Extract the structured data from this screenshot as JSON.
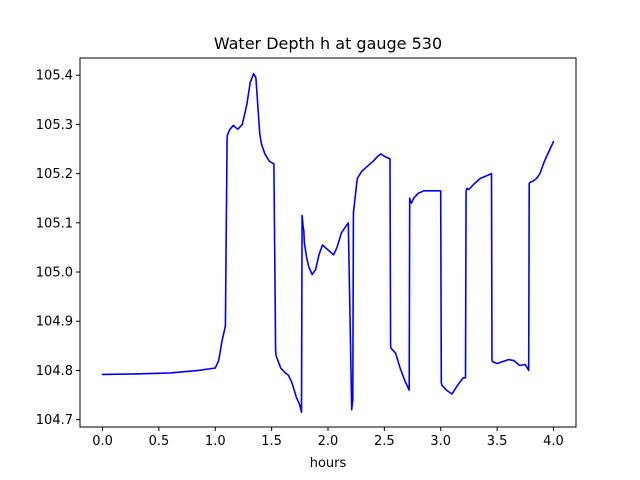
{
  "chart_data": {
    "type": "line",
    "title": "Water Depth h at gauge 530",
    "xlabel": "hours",
    "ylabel": "",
    "xlim": [
      -0.2,
      4.2
    ],
    "ylim": [
      104.685,
      105.435
    ],
    "x_ticks": [
      0.0,
      0.5,
      1.0,
      1.5,
      2.0,
      2.5,
      3.0,
      3.5,
      4.0
    ],
    "x_tick_labels": [
      "0.0",
      "0.5",
      "1.0",
      "1.5",
      "2.0",
      "2.5",
      "3.0",
      "3.5",
      "4.0"
    ],
    "y_ticks": [
      104.7,
      104.8,
      104.9,
      105.0,
      105.1,
      105.2,
      105.3,
      105.4
    ],
    "y_tick_labels": [
      "104.7",
      "104.8",
      "104.9",
      "105.0",
      "105.1",
      "105.2",
      "105.3",
      "105.4"
    ],
    "grid": false,
    "colors": {
      "series": "#0000ff",
      "axes": "#000000",
      "background": "#ffffff"
    },
    "series": [
      {
        "x": [
          0.0,
          0.3,
          0.6,
          0.7,
          0.85,
          1.0,
          1.03,
          1.06,
          1.09,
          1.105,
          1.11,
          1.13,
          1.16,
          1.2,
          1.24,
          1.28,
          1.31,
          1.34,
          1.36,
          1.38,
          1.395,
          1.41,
          1.44,
          1.48,
          1.52,
          1.535,
          1.54,
          1.58,
          1.62,
          1.65,
          1.68,
          1.7,
          1.72,
          1.74,
          1.75,
          1.76,
          1.765,
          1.77,
          1.775,
          1.78,
          1.785,
          1.79,
          1.81,
          1.83,
          1.86,
          1.89,
          1.92,
          1.95,
          2.0,
          2.05,
          2.08,
          2.12,
          2.18,
          2.21,
          2.215,
          2.22,
          2.225,
          2.235,
          2.24,
          2.245,
          2.26,
          2.3,
          2.35,
          2.4,
          2.44,
          2.47,
          2.5,
          2.55,
          2.555,
          2.56,
          2.6,
          2.64,
          2.68,
          2.71,
          2.72,
          2.725,
          2.73,
          2.74,
          2.76,
          2.8,
          2.85,
          2.9,
          2.95,
          3.0,
          3.005,
          3.01,
          3.05,
          3.1,
          3.15,
          3.2,
          3.22,
          3.225,
          3.23,
          3.25,
          3.3,
          3.35,
          3.4,
          3.45,
          3.455,
          3.46,
          3.5,
          3.55,
          3.6,
          3.65,
          3.7,
          3.75,
          3.78,
          3.785,
          3.79,
          3.82,
          3.85,
          3.88,
          3.92,
          3.96,
          4.0
        ],
        "y": [
          104.792,
          104.793,
          104.795,
          104.797,
          104.8,
          104.805,
          104.82,
          104.86,
          104.89,
          105.275,
          105.28,
          105.29,
          105.298,
          105.29,
          105.3,
          105.34,
          105.385,
          105.403,
          105.395,
          105.33,
          105.28,
          105.26,
          105.24,
          105.225,
          105.22,
          104.84,
          104.83,
          104.805,
          104.795,
          104.79,
          104.775,
          104.76,
          104.745,
          104.735,
          104.73,
          104.72,
          104.715,
          105.115,
          105.105,
          105.09,
          105.085,
          105.06,
          105.03,
          105.01,
          104.995,
          105.005,
          105.035,
          105.055,
          105.045,
          105.035,
          105.05,
          105.08,
          105.1,
          104.72,
          104.73,
          104.74,
          105.12,
          105.14,
          105.15,
          105.16,
          105.19,
          105.205,
          105.215,
          105.225,
          105.235,
          105.24,
          105.235,
          105.23,
          104.85,
          104.845,
          104.835,
          104.805,
          104.78,
          104.765,
          104.76,
          105.15,
          105.145,
          105.14,
          105.15,
          105.16,
          105.165,
          105.165,
          105.165,
          105.165,
          104.775,
          104.77,
          104.76,
          104.752,
          104.77,
          104.785,
          104.785,
          105.165,
          105.17,
          105.168,
          105.18,
          105.19,
          105.195,
          105.2,
          104.82,
          104.818,
          104.814,
          104.818,
          104.822,
          104.82,
          104.81,
          104.812,
          104.8,
          105.18,
          105.182,
          105.185,
          105.19,
          105.2,
          105.225,
          105.245,
          105.265
        ]
      }
    ]
  }
}
